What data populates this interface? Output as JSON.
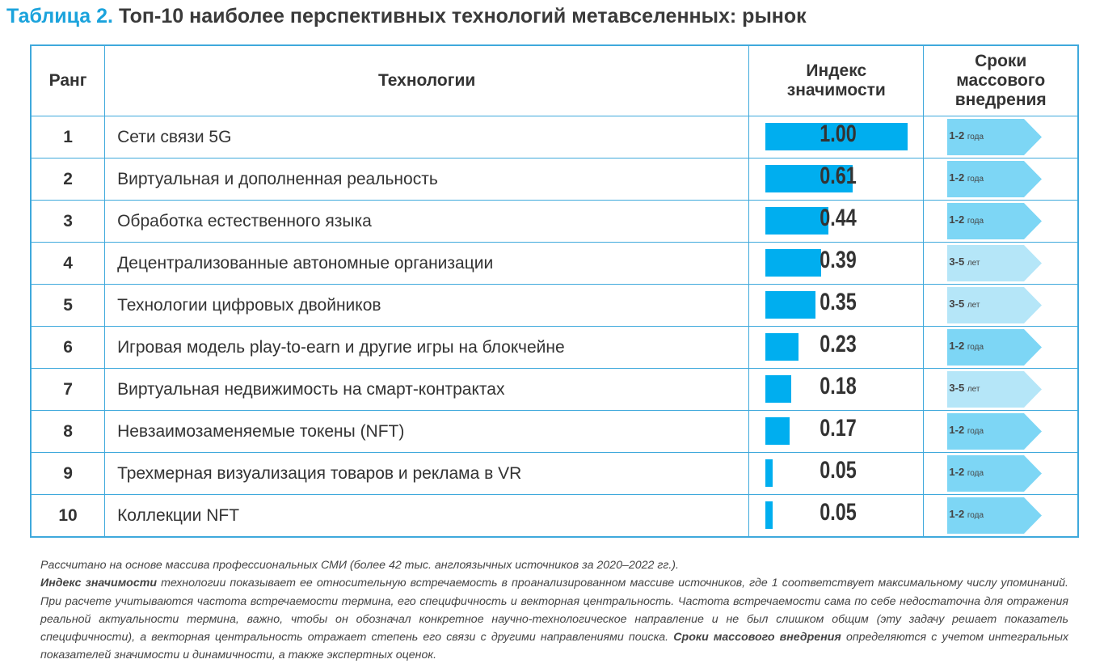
{
  "title": {
    "number": "Таблица 2.",
    "text": "Топ-10 наиболее перспективных технологий метавселенных: рынок"
  },
  "headers": {
    "rank": "Ранг",
    "tech": "Технологии",
    "index": "Индекс значимости",
    "timeline": "Сроки массового внедрения"
  },
  "colors": {
    "bar": "#00aeef",
    "badge_short": "#7dd6f5",
    "badge_long": "#b5e6f8",
    "accent": "#1ba3dc"
  },
  "rows": [
    {
      "rank": "1",
      "tech": "Сети связи 5G",
      "index": 1.0,
      "index_label": "1.00",
      "time_num": "1-2",
      "time_unit": "года"
    },
    {
      "rank": "2",
      "tech": "Виртуальная и дополненная реальность",
      "index": 0.61,
      "index_label": "0.61",
      "time_num": "1-2",
      "time_unit": "года"
    },
    {
      "rank": "3",
      "tech": "Обработка естественного языка",
      "index": 0.44,
      "index_label": "0.44",
      "time_num": "1-2",
      "time_unit": "года"
    },
    {
      "rank": "4",
      "tech": "Децентрализованные автономные организации",
      "index": 0.39,
      "index_label": "0.39",
      "time_num": "3-5",
      "time_unit": "лет"
    },
    {
      "rank": "5",
      "tech": "Технологии цифровых двойников",
      "index": 0.35,
      "index_label": "0.35",
      "time_num": "3-5",
      "time_unit": "лет"
    },
    {
      "rank": "6",
      "tech": "Игровая модель play-to-earn и другие игры на блокчейне",
      "index": 0.23,
      "index_label": "0.23",
      "time_num": "1-2",
      "time_unit": "года"
    },
    {
      "rank": "7",
      "tech": "Виртуальная недвижимость на смарт-контрактах",
      "index": 0.18,
      "index_label": "0.18",
      "time_num": "3-5",
      "time_unit": "лет"
    },
    {
      "rank": "8",
      "tech": "Невзаимозаменяемые токены (NFT)",
      "index": 0.17,
      "index_label": "0.17",
      "time_num": "1-2",
      "time_unit": "года"
    },
    {
      "rank": "9",
      "tech": "Трехмерная визуализация товаров и реклама в VR",
      "index": 0.05,
      "index_label": "0.05",
      "time_num": "1-2",
      "time_unit": "года"
    },
    {
      "rank": "10",
      "tech": "Коллекции NFT",
      "index": 0.05,
      "index_label": "0.05",
      "time_num": "1-2",
      "time_unit": "года"
    }
  ],
  "footnote": {
    "line1": "Рассчитано на основе массива профессиональных СМИ (более 42 тыс. англоязычных источников за 2020–2022 гг.).",
    "term1": "Индекс значимости",
    "text1": " технологии показывает ее относительную встречаемость в проанализированном массиве источников, где 1 соответствует максимальному числу упоминаний. При расчете учитываются частота встречаемости термина, его специфичность и векторная центральность. Частота встречаемости сама по себе недостаточна для отражения реальной актуальности термина, важно, чтобы он обозначал конкретное научно-технологическое направление и не был слишком общим (эту задачу решает показатель специфичности), а векторная центральность отражает степень его связи с другими направлениями поиска. ",
    "term2": "Сроки массового внедрения",
    "text2": " определяются с учетом интегральных показателей значимости и динамичности, а также экспертных оценок."
  }
}
